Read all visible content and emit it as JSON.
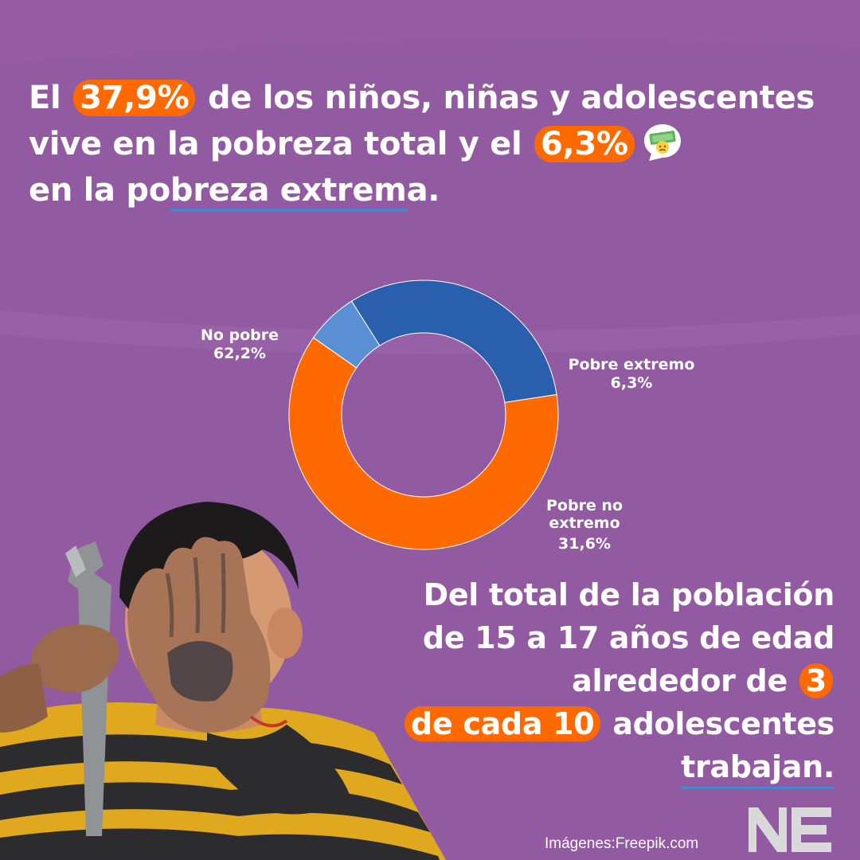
{
  "headline": {
    "t1": "El",
    "h1": "37,9%",
    "t2": "de los niños, niñas y adolescentes vive en la pobreza total y el",
    "h2": "6,3%",
    "t3": "en la po",
    "t4": "breza extrem",
    "t5": "a."
  },
  "chart_data": {
    "type": "pie",
    "title": "",
    "labels": [
      "No pobre",
      "Pobre extremo",
      "Pobre no extremo"
    ],
    "values": [
      62.2,
      6.3,
      31.6
    ],
    "value_labels": [
      "62,2%",
      "6,3%",
      "31,6%"
    ],
    "colors": [
      "#ff6a00",
      "#5b8fd4",
      "#2a5fae"
    ],
    "style": "donut",
    "start_angle_deg": 305,
    "order": [
      1,
      2,
      0
    ]
  },
  "labels": {
    "no_pobre_name": "No pobre",
    "no_pobre_value": "62,2%",
    "extremo_name": "Pobre extremo",
    "extremo_value": "6,3%",
    "no_extremo_name1": "Pobre no",
    "no_extremo_name2": "extremo",
    "no_extremo_value": "31,6%"
  },
  "bottom": {
    "line1": "Del total de la población",
    "line2": "de 15 a 17 años de edad",
    "line3": "alrededor de",
    "h3": "3",
    "h4": "de cada 10",
    "line4": "adolescentes",
    "line5": "trabajan."
  },
  "credit": "Imágenes:Freepik.com",
  "colors": {
    "background": "#925aa1",
    "accent": "#ff6a00"
  }
}
